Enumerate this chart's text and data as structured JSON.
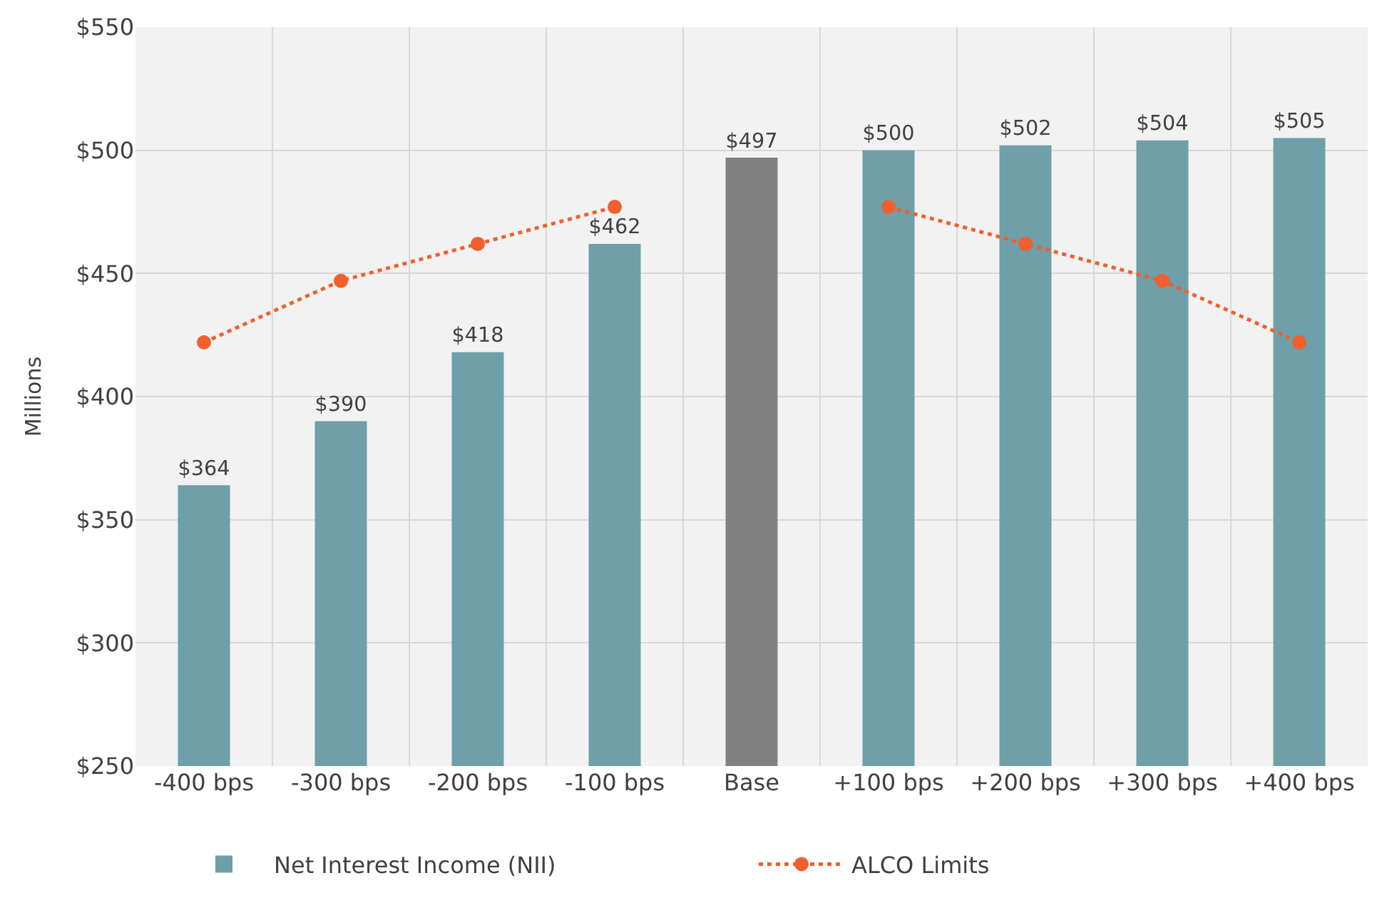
{
  "chart_data": {
    "type": "bar",
    "ylabel": "Millions",
    "categories": [
      "-400 bps",
      "-300 bps",
      "-200 bps",
      "-100 bps",
      "Base",
      "+100 bps",
      "+200 bps",
      "+300 bps",
      "+400 bps"
    ],
    "series": [
      {
        "name": "Net Interest Income (NII)",
        "color": "#6f9fa9",
        "colors": [
          null,
          null,
          null,
          null,
          "#808080",
          null,
          null,
          null,
          null
        ],
        "values": [
          364,
          390,
          418,
          462,
          497,
          500,
          502,
          504,
          505
        ],
        "value_labels": [
          "$364",
          "$390",
          "$418",
          "$462",
          "$497",
          "$500",
          "$502",
          "$504",
          "$505"
        ]
      },
      {
        "name": "ALCO Limits",
        "type": "line",
        "color": "#f0602e",
        "marker": "circle",
        "line_style": "dotted",
        "values": [
          422,
          447,
          462,
          477,
          null,
          477,
          462,
          447,
          422
        ]
      }
    ],
    "ylim": [
      250,
      550
    ],
    "yticks": [
      {
        "value": 250,
        "label": "$250"
      },
      {
        "value": 300,
        "label": "$300"
      },
      {
        "value": 350,
        "label": "$350"
      },
      {
        "value": 400,
        "label": "$400"
      },
      {
        "value": 450,
        "label": "$450"
      },
      {
        "value": 500,
        "label": "$500"
      },
      {
        "value": 550,
        "label": "$550"
      }
    ],
    "grid": true,
    "legend": "bottom"
  }
}
